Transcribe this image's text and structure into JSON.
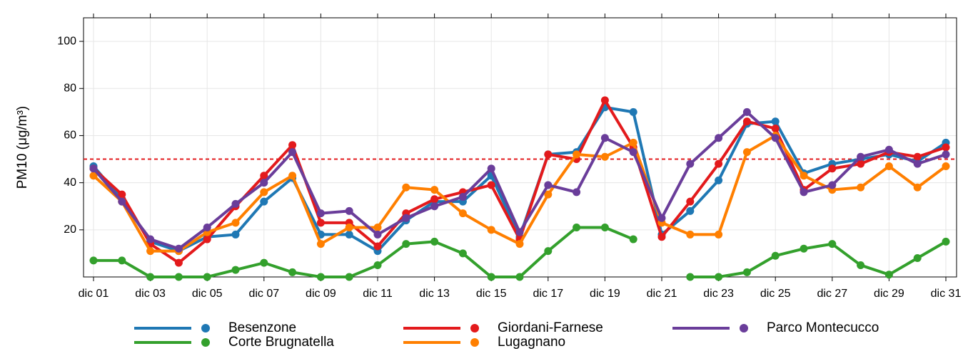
{
  "chart_data": {
    "type": "line",
    "y_label": "PM10 (μg/m³)",
    "categories": [
      "dic 01",
      null,
      "dic 03",
      null,
      "dic 05",
      null,
      "dic 07",
      null,
      "dic 09",
      null,
      "dic 11",
      null,
      "dic 13",
      null,
      "dic 15",
      null,
      "dic 17",
      null,
      "dic 19",
      null,
      "dic 21",
      null,
      "dic 23",
      null,
      "dic 25",
      null,
      "dic 27",
      null,
      "dic 29",
      null,
      "dic 31"
    ],
    "ylim": [
      0,
      110
    ],
    "yticks": [
      20,
      40,
      60,
      80,
      100
    ],
    "grid": true,
    "reference_line": {
      "value": 50,
      "color": "#e31a1c"
    },
    "series": [
      {
        "name": "Besenzone",
        "color": "#1f78b4",
        "values": [
          47,
          33,
          15,
          11,
          17,
          18,
          32,
          42,
          18,
          18,
          11,
          24,
          32,
          32,
          43,
          17,
          52,
          53,
          72,
          70,
          18,
          28,
          41,
          65,
          66,
          44,
          48,
          50,
          52,
          49,
          57
        ]
      },
      {
        "name": "Corte Brugnatella",
        "color": "#33a02c",
        "values": [
          7,
          7,
          0,
          0,
          0,
          3,
          6,
          2,
          0,
          0,
          5,
          14,
          15,
          10,
          0,
          0,
          11,
          21,
          21,
          16,
          null,
          0,
          0,
          2,
          9,
          12,
          14,
          5,
          1,
          8,
          15
        ]
      },
      {
        "name": "Giordani-Farnese",
        "color": "#e31a1c",
        "values": [
          46,
          35,
          14,
          6,
          16,
          30,
          43,
          56,
          23,
          23,
          13,
          27,
          33,
          36,
          39,
          16,
          52,
          50,
          75,
          55,
          17,
          32,
          48,
          66,
          63,
          37,
          46,
          48,
          53,
          51,
          55
        ]
      },
      {
        "name": "Lugagnano",
        "color": "#ff7f00",
        "values": [
          43,
          32,
          11,
          11,
          19,
          23,
          36,
          43,
          14,
          21,
          21,
          38,
          37,
          27,
          20,
          14,
          35,
          52,
          51,
          57,
          23,
          18,
          18,
          53,
          60,
          43,
          37,
          38,
          47,
          38,
          47
        ]
      },
      {
        "name": "Parco Montecucco",
        "color": "#6a3d9a",
        "values": [
          46,
          32,
          16,
          12,
          21,
          31,
          40,
          53,
          27,
          28,
          18,
          25,
          30,
          34,
          46,
          19,
          39,
          36,
          59,
          53,
          25,
          48,
          59,
          70,
          59,
          36,
          39,
          51,
          54,
          48,
          52
        ]
      }
    ]
  }
}
